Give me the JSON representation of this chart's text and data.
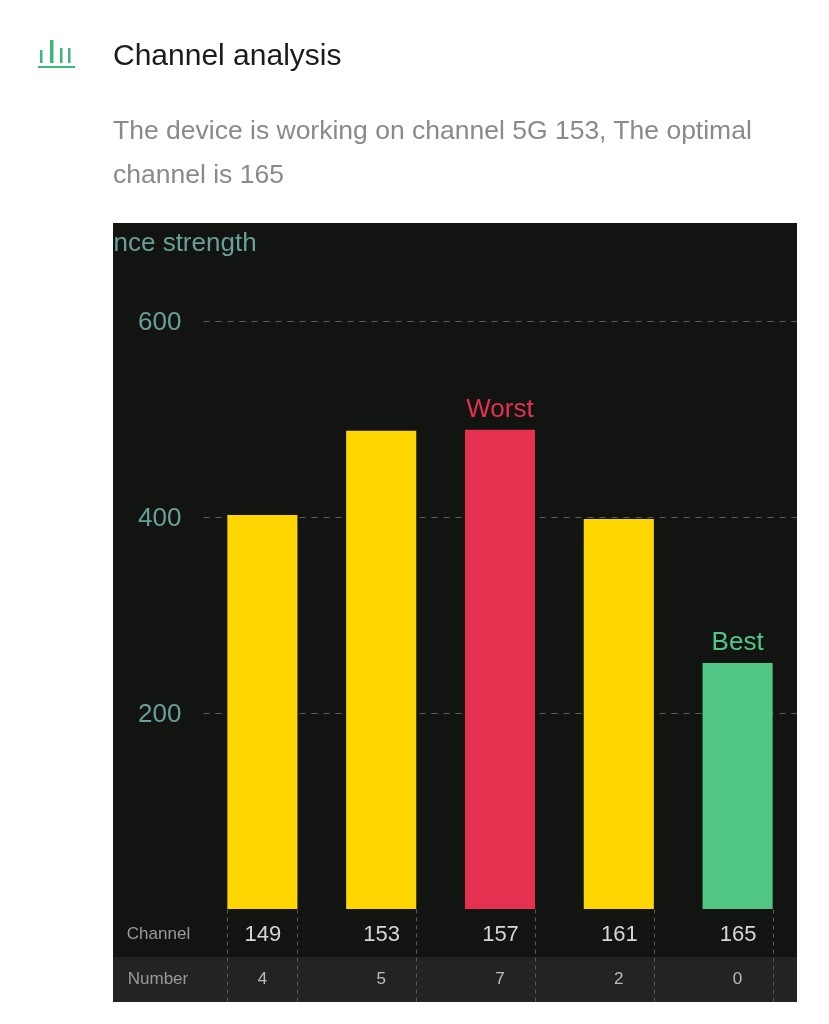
{
  "chart_data": {
    "type": "bar",
    "title": "Channel analysis",
    "subtitle": "The device is working on channel 5G 153, The optimal channel is 165",
    "xlabel": "Channel",
    "ylabel": "nce strength",
    "categories": [
      "149",
      "153",
      "157",
      "161",
      "165"
    ],
    "values": [
      402,
      488,
      489,
      398,
      251
    ],
    "colors": [
      "#ffd600",
      "#ffd600",
      "#e6304f",
      "#ffd600",
      "#52c785"
    ],
    "ylim": [
      0,
      600
    ],
    "yticks": [
      200,
      400,
      600
    ],
    "grid": "y",
    "annotations": [
      {
        "text": "Worst",
        "x": "157",
        "y": 489
      },
      {
        "text": "Best",
        "x": "165",
        "y": 251
      },
      "Number",
      "4",
      "5",
      "7",
      "2",
      "0"
    ]
  }
}
